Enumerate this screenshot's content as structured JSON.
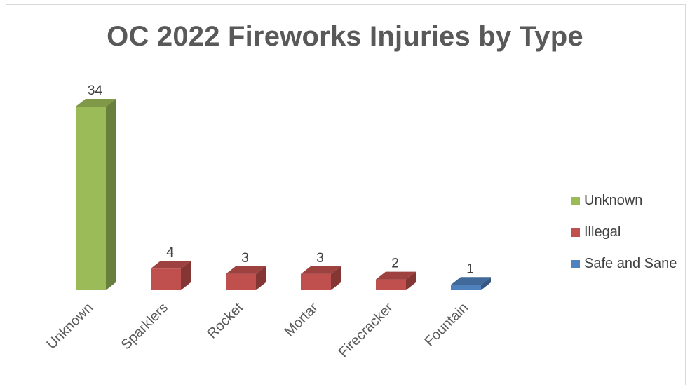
{
  "chart_data": {
    "type": "bar",
    "title": "OC 2022 Fireworks Injuries by Type",
    "categories": [
      "Unknown",
      "Sparklers",
      "Rocket",
      "Mortar",
      "Firecracker",
      "Fountain"
    ],
    "values": [
      34,
      4,
      3,
      3,
      2,
      1
    ],
    "groups": [
      "Unknown",
      "Illegal",
      "Illegal",
      "Illegal",
      "Illegal",
      "Safe and Sane"
    ],
    "data_labels": [
      "34",
      "4",
      "3",
      "3",
      "2",
      "1"
    ],
    "legend": [
      {
        "name": "Unknown",
        "color": "#9bbb59"
      },
      {
        "name": "Illegal",
        "color": "#c0504d"
      },
      {
        "name": "Safe and Sane",
        "color": "#4f81bd"
      }
    ],
    "legend_position": "right",
    "style": "3d-column",
    "grid": false
  }
}
